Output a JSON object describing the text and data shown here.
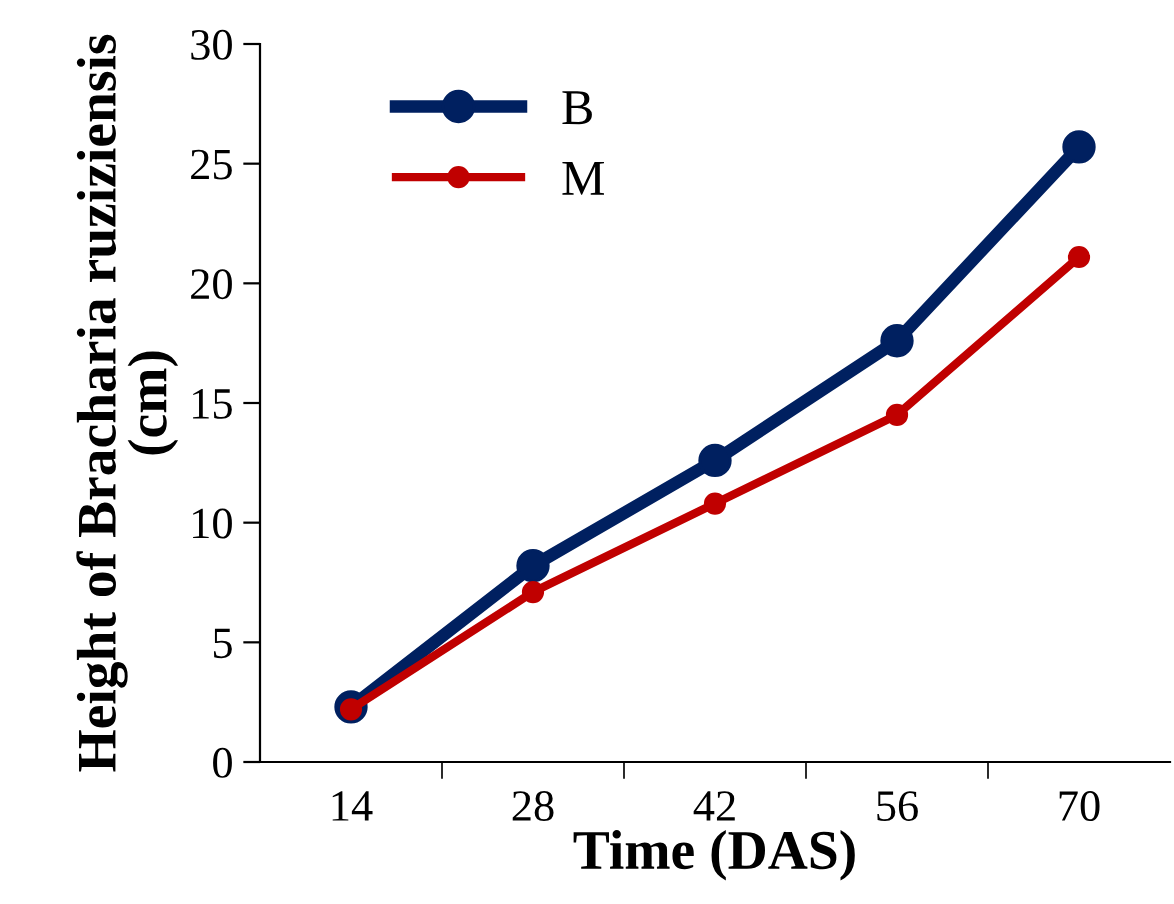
{
  "chart_data": {
    "type": "line",
    "xlabel": "Time (DAS)",
    "ylabel": "Height of Bracharia ruziziensis (cm)",
    "categories": [
      "14",
      "28",
      "42",
      "56",
      "70"
    ],
    "series": [
      {
        "name": "B",
        "color": "#002060",
        "values": [
          2.3,
          8.2,
          12.6,
          17.6,
          25.7
        ]
      },
      {
        "name": "M",
        "color": "#c00000",
        "values": [
          2.2,
          7.1,
          10.8,
          14.5,
          21.1
        ]
      }
    ],
    "ylim": [
      0,
      30
    ],
    "yticks": [
      0,
      5,
      10,
      15,
      20,
      25,
      30
    ],
    "marker": "circle",
    "line_style": "solid",
    "legend": "top left",
    "grid": false
  }
}
